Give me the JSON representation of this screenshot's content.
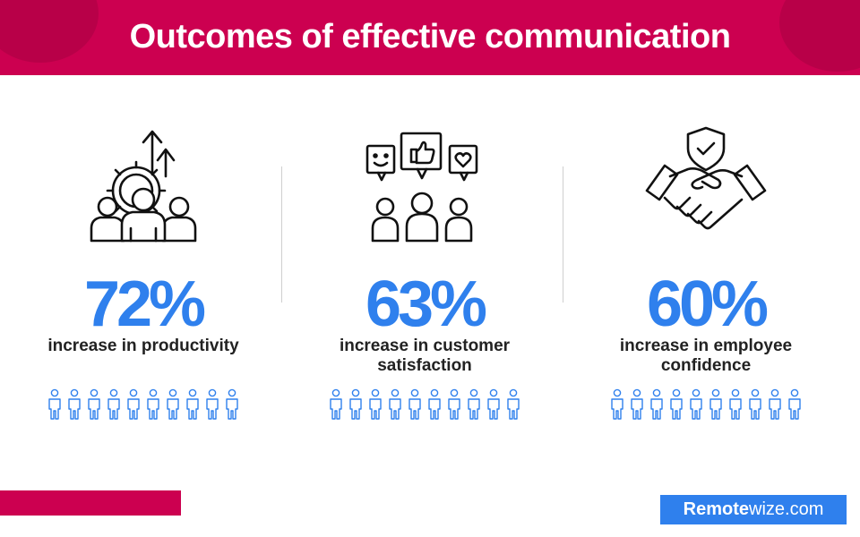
{
  "title": "Outcomes of effective communication",
  "stats": [
    {
      "percent": "72%",
      "description": "increase in  productivity",
      "icon": "gear-team-growth-icon"
    },
    {
      "percent": "63%",
      "description": "increase in customer satisfaction",
      "icon": "customer-feedback-icon"
    },
    {
      "percent": "60%",
      "description": "increase in employee confidence",
      "icon": "handshake-shield-icon"
    }
  ],
  "people_per_row": 10,
  "brand": {
    "bold": "Remote",
    "regular": "wize.com"
  },
  "colors": {
    "header": "#cc0050",
    "accent": "#2f80ed",
    "text": "#222222"
  }
}
